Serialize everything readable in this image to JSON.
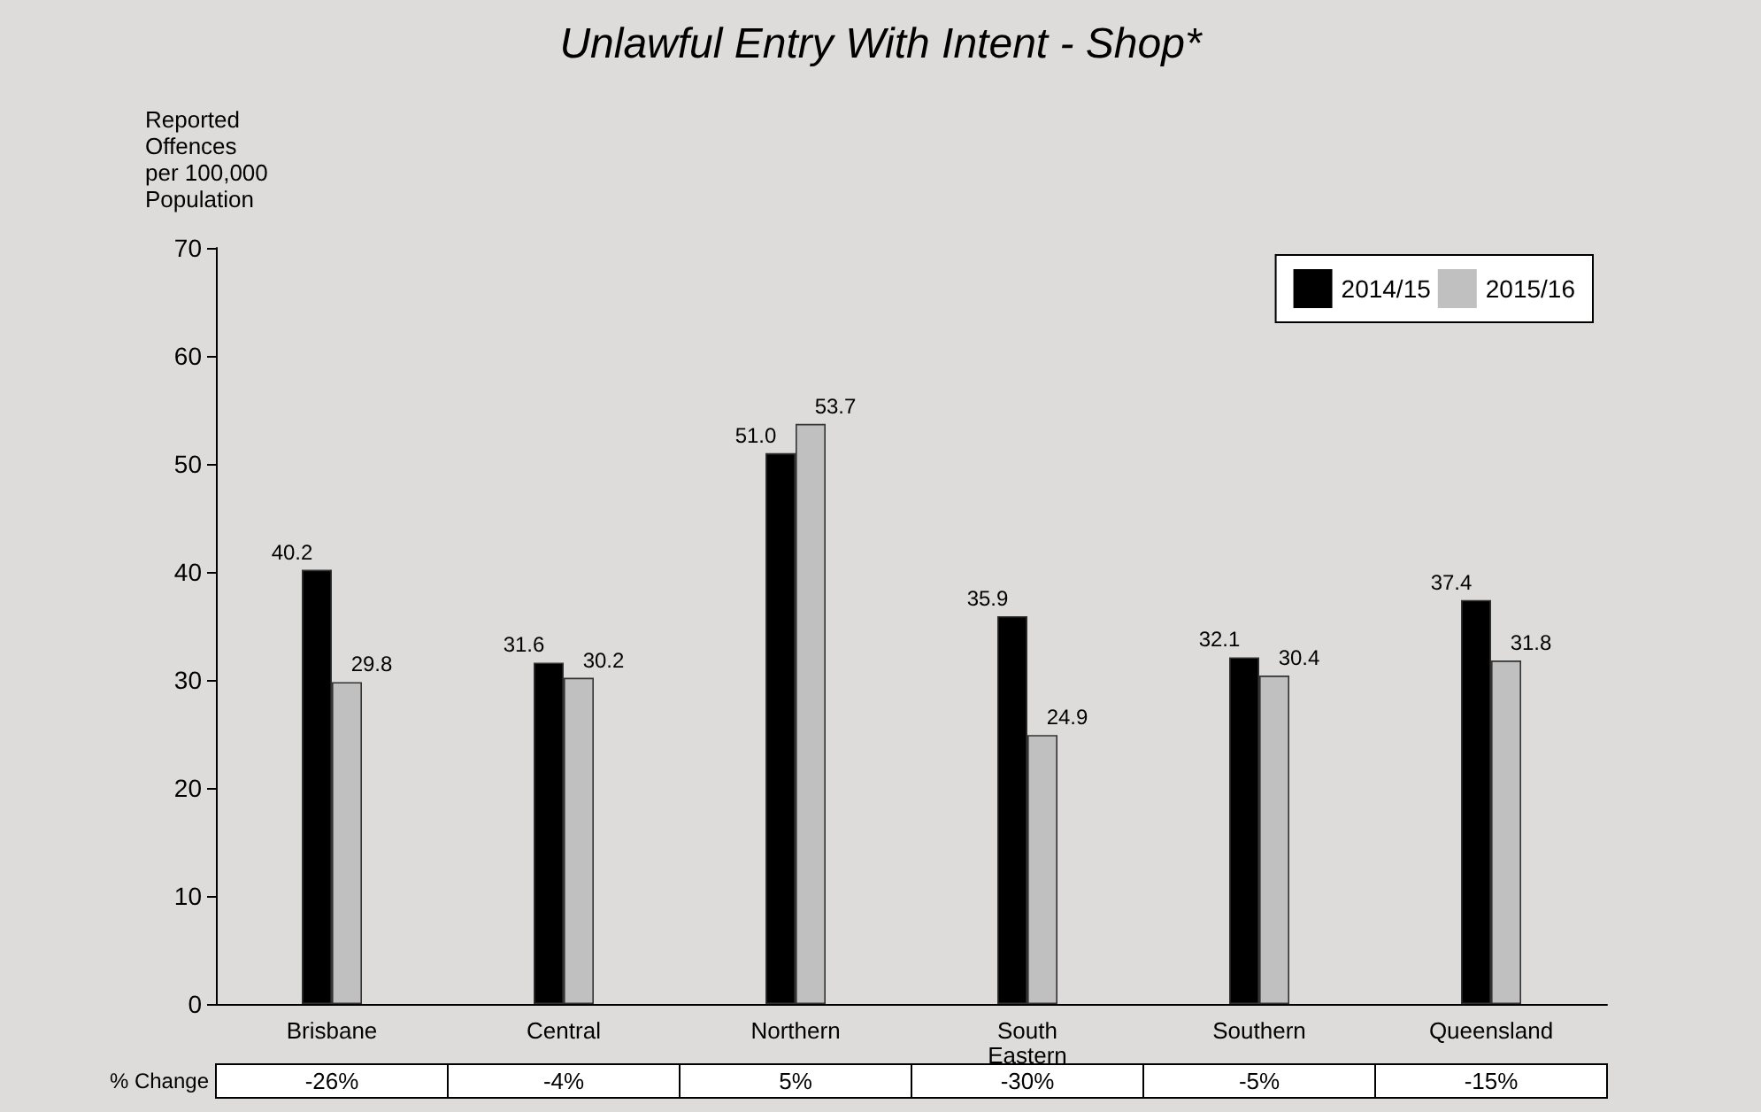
{
  "chart_data": {
    "type": "bar",
    "title": "Unlawful Entry With Intent - Shop*",
    "ylabel": "Reported\nOffences\nper 100,000\nPopulation",
    "categories": [
      "Brisbane",
      "Central",
      "Northern",
      "South\nEastern",
      "Southern",
      "Queensland"
    ],
    "series": [
      {
        "name": "2014/15",
        "color": "#000000",
        "values": [
          40.2,
          31.6,
          51.0,
          35.9,
          32.1,
          37.4
        ],
        "value_labels": [
          "40.2",
          "31.6",
          "51.0",
          "35.9",
          "32.1",
          "37.4"
        ]
      },
      {
        "name": "2015/16",
        "color": "#c0c0c0",
        "values": [
          29.8,
          30.2,
          53.7,
          24.9,
          30.4,
          31.8
        ],
        "value_labels": [
          "29.8",
          "30.2",
          "53.7",
          "24.9",
          "30.4",
          "31.8"
        ]
      }
    ],
    "ylim": [
      0,
      70
    ],
    "yticks": [
      0,
      10,
      20,
      30,
      40,
      50,
      60,
      70
    ],
    "grid": false,
    "legend": "top right",
    "annotations": [
      "% Change",
      "-26%",
      "-4%",
      "5%",
      "-30%",
      "-5%",
      "-15%"
    ]
  }
}
